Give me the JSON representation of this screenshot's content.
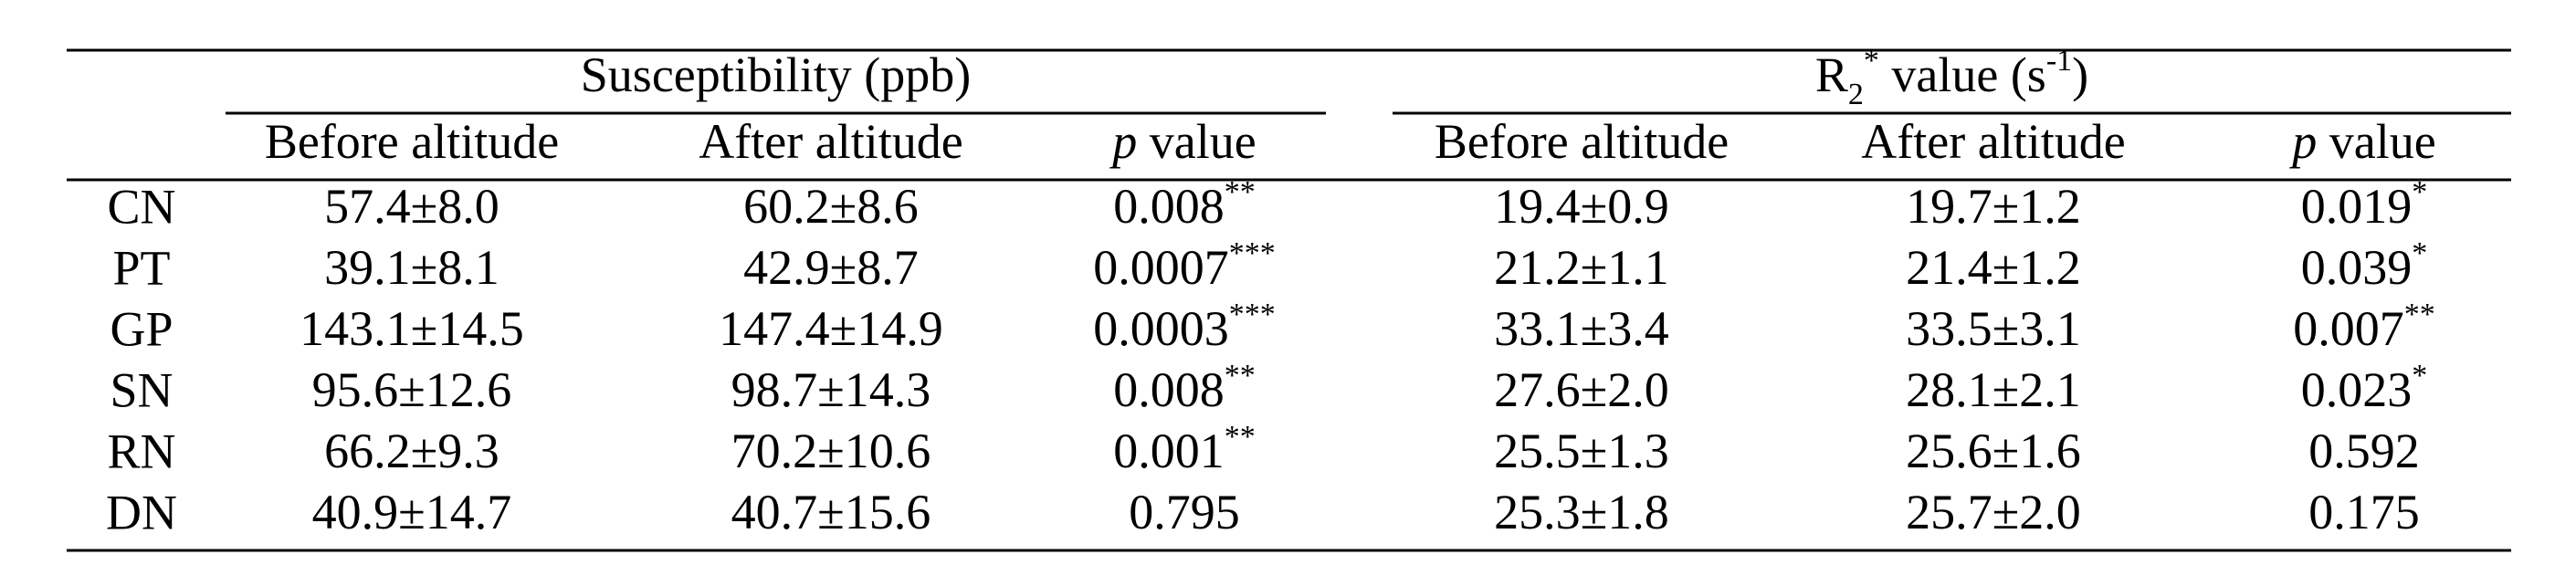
{
  "table": {
    "groups": [
      {
        "parts": [
          {
            "text": "Susceptibility (ppb)"
          }
        ]
      },
      {
        "parts": [
          {
            "text": "R"
          },
          {
            "text": "2",
            "sub": true
          },
          {
            "text": "*",
            "sup": true
          },
          {
            "text": " value (s"
          },
          {
            "text": "-1",
            "sup": true
          },
          {
            "text": ")"
          }
        ]
      }
    ],
    "column_headers": [
      {
        "parts": [
          {
            "text": "Before altitude"
          }
        ]
      },
      {
        "parts": [
          {
            "text": "After altitude"
          }
        ]
      },
      {
        "parts": [
          {
            "text": "p",
            "italic": true
          },
          {
            "text": " value"
          }
        ]
      },
      {
        "parts": [
          {
            "text": "Before altitude"
          }
        ]
      },
      {
        "parts": [
          {
            "text": "After altitude"
          }
        ]
      },
      {
        "parts": [
          {
            "text": "p",
            "italic": true
          },
          {
            "text": " value"
          }
        ]
      }
    ],
    "rows": [
      {
        "label": "CN",
        "cells": [
          {
            "text": "57.4±8.0"
          },
          {
            "text": "60.2±8.6"
          },
          {
            "text": "0.008",
            "sup": "**"
          },
          {
            "text": "19.4±0.9"
          },
          {
            "text": "19.7±1.2"
          },
          {
            "text": "0.019",
            "sup": "*"
          }
        ]
      },
      {
        "label": "PT",
        "cells": [
          {
            "text": "39.1±8.1"
          },
          {
            "text": "42.9±8.7"
          },
          {
            "text": "0.0007",
            "sup": "***"
          },
          {
            "text": "21.2±1.1"
          },
          {
            "text": "21.4±1.2"
          },
          {
            "text": "0.039",
            "sup": "*"
          }
        ]
      },
      {
        "label": "GP",
        "cells": [
          {
            "text": "143.1±14.5"
          },
          {
            "text": "147.4±14.9"
          },
          {
            "text": "0.0003",
            "sup": "***"
          },
          {
            "text": "33.1±3.4"
          },
          {
            "text": "33.5±3.1"
          },
          {
            "text": "0.007",
            "sup": "**"
          }
        ]
      },
      {
        "label": "SN",
        "cells": [
          {
            "text": "95.6±12.6"
          },
          {
            "text": "98.7±14.3"
          },
          {
            "text": "0.008",
            "sup": "**"
          },
          {
            "text": "27.6±2.0"
          },
          {
            "text": "28.1±2.1"
          },
          {
            "text": "0.023",
            "sup": "*"
          }
        ]
      },
      {
        "label": "RN",
        "cells": [
          {
            "text": "66.2±9.3"
          },
          {
            "text": "70.2±10.6"
          },
          {
            "text": "0.001",
            "sup": "**"
          },
          {
            "text": "25.5±1.3"
          },
          {
            "text": "25.6±1.6"
          },
          {
            "text": "0.592"
          }
        ]
      },
      {
        "label": "DN",
        "cells": [
          {
            "text": "40.9±14.7"
          },
          {
            "text": "40.7±15.6"
          },
          {
            "text": "0.795"
          },
          {
            "text": "25.3±1.8"
          },
          {
            "text": "25.7±2.0"
          },
          {
            "text": "0.175"
          }
        ]
      }
    ]
  }
}
